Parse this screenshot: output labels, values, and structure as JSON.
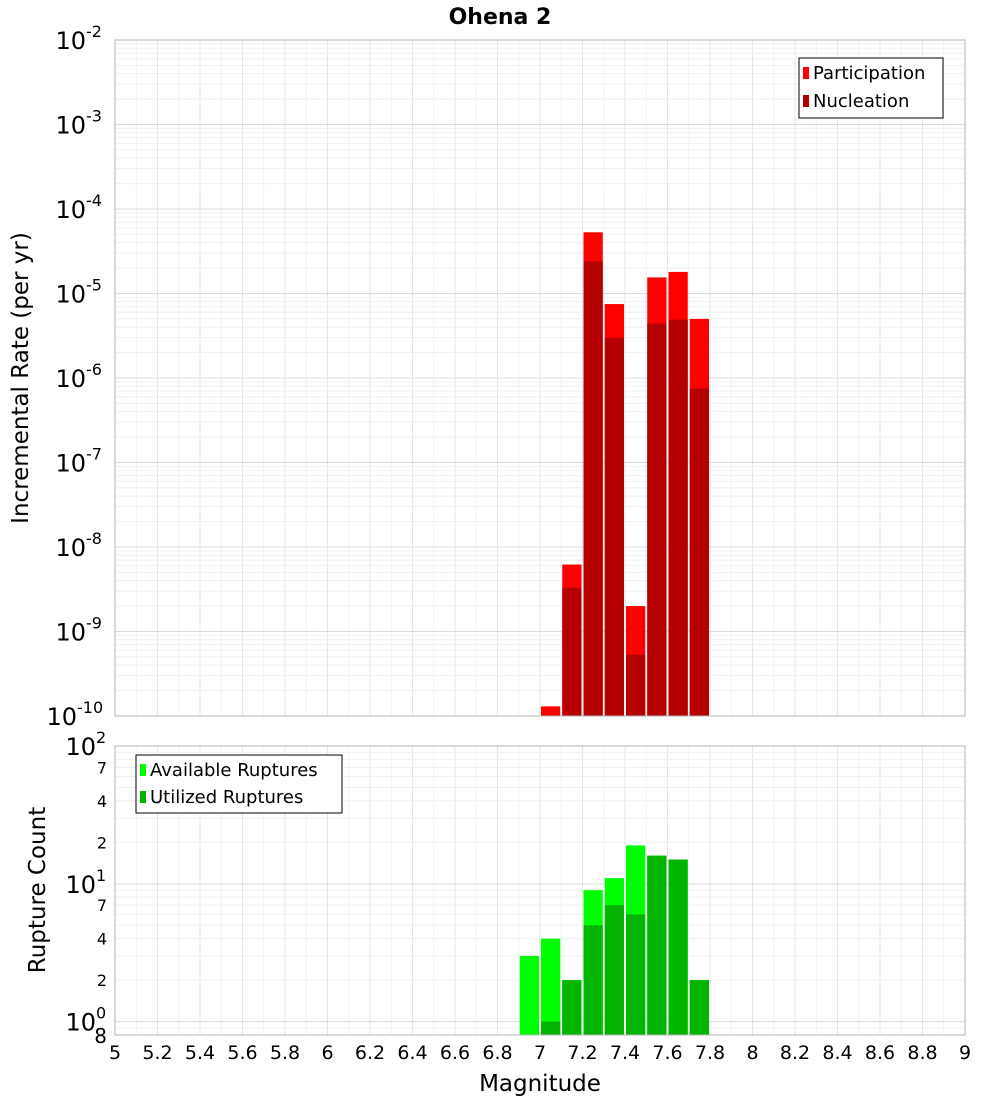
{
  "chart_data": [
    {
      "type": "bar",
      "title": "Ohena 2",
      "ylabel": "Incremental Rate (per yr)",
      "xlabel": "",
      "x_scale": "linear",
      "y_scale": "log",
      "xlim": [
        5,
        9
      ],
      "ylim": [
        1e-10,
        0.01
      ],
      "y_ticks": [
        {
          "base": "10",
          "exp": "-10",
          "value": 1e-10
        },
        {
          "base": "10",
          "exp": "-9",
          "value": 1e-09
        },
        {
          "base": "10",
          "exp": "-8",
          "value": 1e-08
        },
        {
          "base": "10",
          "exp": "-7",
          "value": 1e-07
        },
        {
          "base": "10",
          "exp": "-6",
          "value": 1e-06
        },
        {
          "base": "10",
          "exp": "-5",
          "value": 1e-05
        },
        {
          "base": "10",
          "exp": "-4",
          "value": 0.0001
        },
        {
          "base": "10",
          "exp": "-3",
          "value": 0.001
        },
        {
          "base": "10",
          "exp": "-2",
          "value": 0.01
        }
      ],
      "grid": true,
      "legend_position": "top-right",
      "series": [
        {
          "name": "Participation",
          "color": "#ff0000",
          "x": [
            7.05,
            7.15,
            7.25,
            7.35,
            7.45,
            7.55,
            7.65,
            7.75
          ],
          "values": [
            1.3e-10,
            6.2e-09,
            5.3e-05,
            7.5e-06,
            2e-09,
            1.55e-05,
            1.8e-05,
            5e-06
          ]
        },
        {
          "name": "Nucleation",
          "color": "#b40000",
          "x": [
            7.15,
            7.25,
            7.35,
            7.45,
            7.55,
            7.65,
            7.75
          ],
          "values": [
            3.3e-09,
            2.4e-05,
            3e-06,
            5.3e-10,
            4.4e-06,
            4.9e-06,
            7.5e-07
          ]
        }
      ]
    },
    {
      "type": "bar",
      "title": "",
      "ylabel": "Rupture Count",
      "xlabel": "Magnitude",
      "x_scale": "linear",
      "y_scale": "log",
      "xlim": [
        5,
        9
      ],
      "ylim": [
        0.8,
        100
      ],
      "x_ticks": [
        "5",
        "5.2",
        "5.4",
        "5.6",
        "5.8",
        "6",
        "6.2",
        "6.4",
        "6.6",
        "6.8",
        "7",
        "7.2",
        "7.4",
        "7.6",
        "7.8",
        "8",
        "8.2",
        "8.4",
        "8.6",
        "8.8",
        "9"
      ],
      "y_major_ticks": [
        {
          "base": "10",
          "exp": "0",
          "value": 1
        },
        {
          "base": "10",
          "exp": "1",
          "value": 10
        },
        {
          "base": "10",
          "exp": "2",
          "value": 100
        }
      ],
      "y_minor_ticks": [
        {
          "label": "8",
          "value": 0.8
        },
        {
          "label": "2",
          "value": 2
        },
        {
          "label": "4",
          "value": 4
        },
        {
          "label": "7",
          "value": 7
        },
        {
          "label": "2",
          "value": 20
        },
        {
          "label": "4",
          "value": 40
        },
        {
          "label": "7",
          "value": 70
        }
      ],
      "grid": true,
      "legend_position": "top-left",
      "series": [
        {
          "name": "Available Ruptures",
          "color": "#00ff00",
          "x": [
            6.95,
            7.05,
            7.15,
            7.25,
            7.35,
            7.45,
            7.55,
            7.65,
            7.75
          ],
          "values": [
            3,
            4,
            2,
            9,
            11,
            19,
            16,
            15,
            2
          ]
        },
        {
          "name": "Utilized Ruptures",
          "color": "#00b400",
          "x": [
            7.05,
            7.15,
            7.25,
            7.35,
            7.45,
            7.55,
            7.65,
            7.75
          ],
          "values": [
            1,
            2,
            5,
            7,
            6,
            16,
            15,
            2
          ]
        }
      ]
    }
  ]
}
